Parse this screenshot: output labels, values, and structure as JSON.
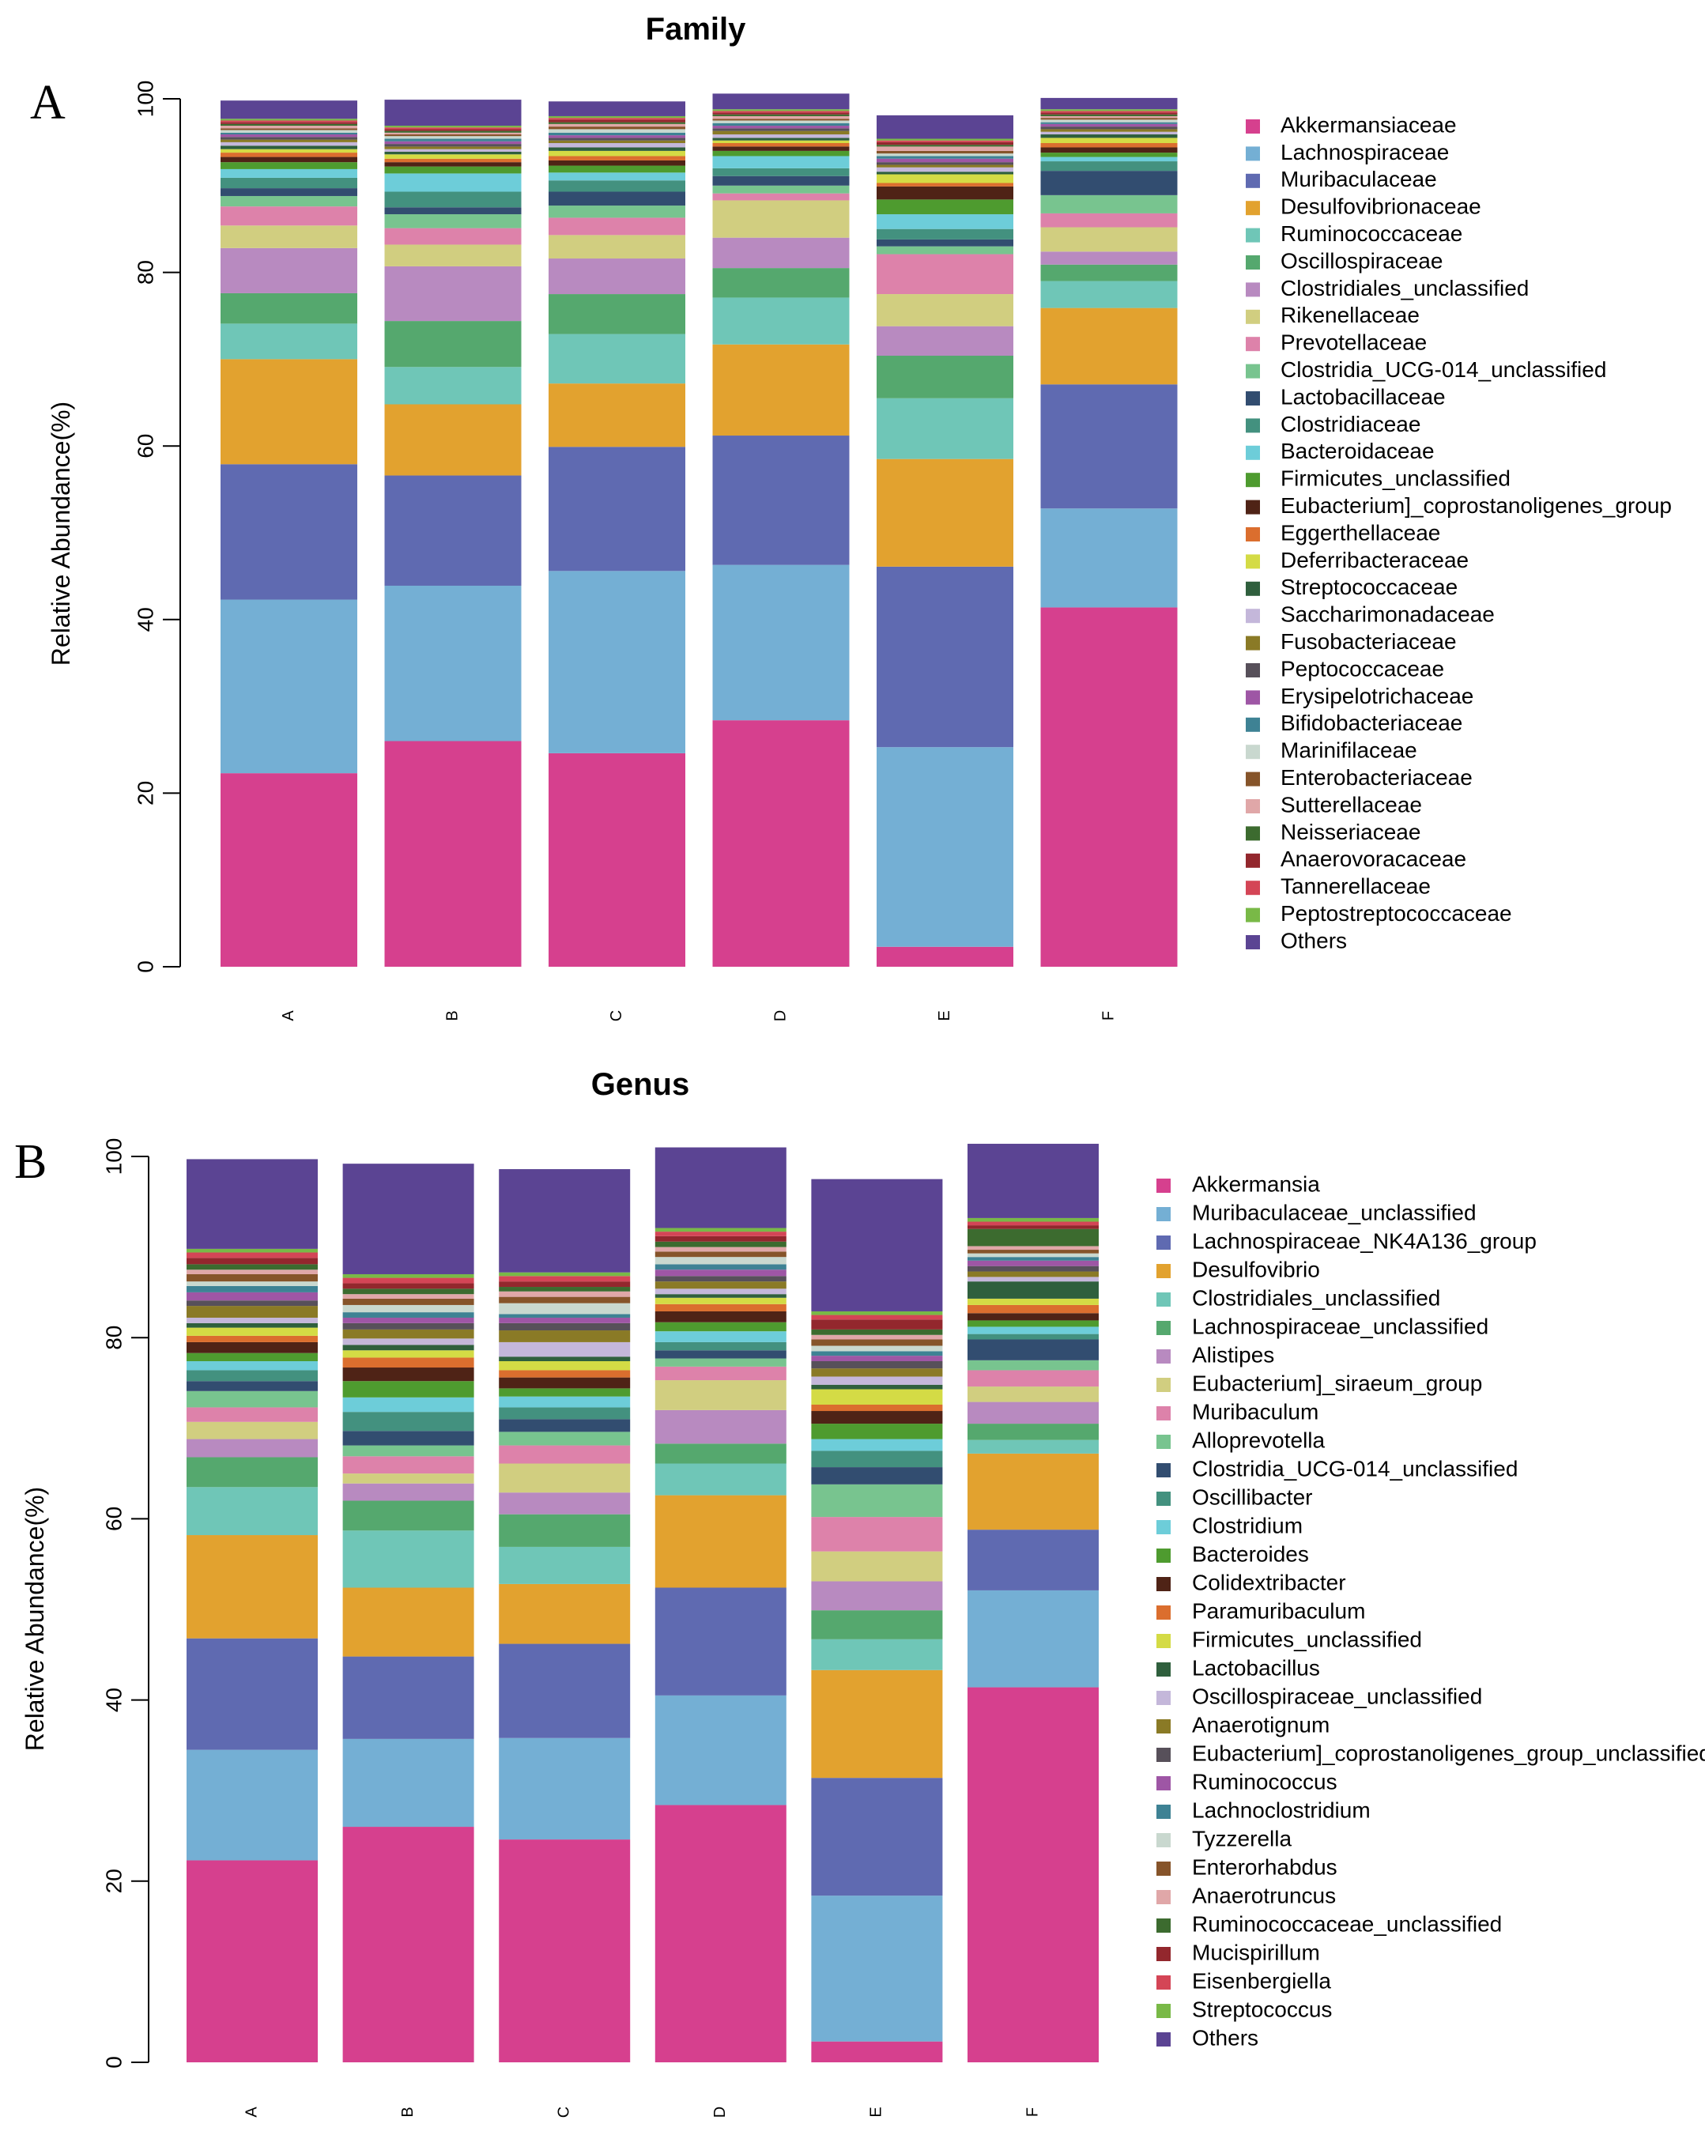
{
  "panels": [
    {
      "letter": "A",
      "chart_data": {
        "type": "stacked-bar",
        "title": "Family",
        "xlabel": "",
        "ylabel": "Relative Abundance(%)",
        "ylim": [
          0,
          100
        ],
        "yticks": [
          "0",
          "20",
          "40",
          "60",
          "80",
          "100"
        ],
        "categories": [
          "A",
          "B",
          "C",
          "D",
          "E",
          "F"
        ],
        "legend_position": "right",
        "series": [
          {
            "name": "Akkermansiaceae",
            "color": "#D6408E",
            "values": [
              22.3,
              26.0,
              24.6,
              28.4,
              2.3,
              41.4
            ]
          },
          {
            "name": "Lachnospiraceae",
            "color": "#74AFD4",
            "values": [
              20.0,
              17.9,
              21.0,
              17.9,
              23.0,
              11.4
            ]
          },
          {
            "name": "Muribaculaceae",
            "color": "#5F6AB1",
            "values": [
              15.6,
              12.7,
              14.3,
              14.9,
              20.8,
              14.3
            ]
          },
          {
            "name": "Desulfovibrionaceae",
            "color": "#E2A22F",
            "values": [
              12.1,
              8.2,
              7.3,
              10.5,
              12.4,
              8.8
            ]
          },
          {
            "name": "Ruminococcaceae",
            "color": "#6FC6B7",
            "values": [
              4.1,
              4.3,
              5.7,
              5.4,
              7.0,
              3.1
            ]
          },
          {
            "name": "Oscillospiraceae",
            "color": "#55A86E",
            "values": [
              3.5,
              5.3,
              4.6,
              3.4,
              4.9,
              1.9
            ]
          },
          {
            "name": "Clostridiales_unclassified",
            "color": "#B88AC0",
            "values": [
              5.2,
              6.3,
              4.1,
              3.5,
              3.4,
              1.5
            ]
          },
          {
            "name": "Rikenellaceae",
            "color": "#D1CE80",
            "values": [
              2.6,
              2.5,
              2.7,
              4.3,
              3.7,
              2.8
            ]
          },
          {
            "name": "Prevotellaceae",
            "color": "#DD82AA",
            "values": [
              2.2,
              1.9,
              2.0,
              0.8,
              4.6,
              1.6
            ]
          },
          {
            "name": "Clostridia_UCG-014_unclassified",
            "color": "#78C48F",
            "values": [
              1.2,
              1.6,
              1.4,
              0.9,
              0.9,
              2.1
            ]
          },
          {
            "name": "Lactobacillaceae",
            "color": "#324D70",
            "values": [
              0.9,
              0.8,
              1.6,
              1.1,
              0.8,
              2.8
            ]
          },
          {
            "name": "Clostridiaceae",
            "color": "#43917F",
            "values": [
              1.2,
              1.8,
              1.3,
              0.9,
              1.2,
              1.1
            ]
          },
          {
            "name": "Bacteroidaceae",
            "color": "#6DCDD9",
            "values": [
              1.0,
              2.1,
              0.9,
              1.4,
              1.7,
              0.5
            ]
          },
          {
            "name": "Firmicutes_unclassified",
            "color": "#4E9B2F",
            "values": [
              0.8,
              0.8,
              0.8,
              0.6,
              1.7,
              0.5
            ]
          },
          {
            "name": "Eubacterium]_coprostanoligenes_group",
            "color": "#4F2316",
            "values": [
              0.6,
              0.5,
              0.6,
              0.5,
              1.5,
              0.6
            ]
          },
          {
            "name": "Eggerthellaceae",
            "color": "#DB6E2E",
            "values": [
              0.5,
              0.4,
              0.5,
              0.4,
              0.4,
              0.5
            ]
          },
          {
            "name": "Deferribacteraceae",
            "color": "#D4DB45",
            "values": [
              0.4,
              0.5,
              0.6,
              0.3,
              1.0,
              0.6
            ]
          },
          {
            "name": "Streptococcaceae",
            "color": "#2F5F3D",
            "values": [
              0.4,
              0.3,
              0.4,
              0.3,
              0.3,
              0.4
            ]
          },
          {
            "name": "Saccharimonadaceae",
            "color": "#C4B7DA",
            "values": [
              0.4,
              0.3,
              0.5,
              0.4,
              0.5,
              0.3
            ]
          },
          {
            "name": "Fusobacteriaceae",
            "color": "#8A7A26",
            "values": [
              0.3,
              0.3,
              0.3,
              0.4,
              0.3,
              0.3
            ]
          },
          {
            "name": "Peptococcaceae",
            "color": "#57505A",
            "values": [
              0.3,
              0.3,
              0.3,
              0.3,
              0.3,
              0.3
            ]
          },
          {
            "name": "Erysipelotrichaceae",
            "color": "#9E56A5",
            "values": [
              0.3,
              0.3,
              0.3,
              0.3,
              0.4,
              0.3
            ]
          },
          {
            "name": "Bifidobacteriaceae",
            "color": "#3E8294",
            "values": [
              0.2,
              0.3,
              0.3,
              0.3,
              0.3,
              0.2
            ]
          },
          {
            "name": "Marinifilaceae",
            "color": "#C9D8CF",
            "values": [
              0.3,
              0.3,
              0.4,
              0.3,
              0.3,
              0.3
            ]
          },
          {
            "name": "Enterobacteriaceae",
            "color": "#86542A",
            "values": [
              0.2,
              0.2,
              0.3,
              0.2,
              0.3,
              0.2
            ]
          },
          {
            "name": "Sutterellaceae",
            "color": "#E0A7A8",
            "values": [
              0.3,
              0.2,
              0.3,
              0.3,
              0.5,
              0.2
            ]
          },
          {
            "name": "Neisseriaceae",
            "color": "#3C6B2F",
            "values": [
              0.2,
              0.2,
              0.2,
              0.2,
              0.2,
              0.2
            ]
          },
          {
            "name": "Anaerovoracaceae",
            "color": "#93272D",
            "values": [
              0.2,
              0.2,
              0.3,
              0.2,
              0.3,
              0.2
            ]
          },
          {
            "name": "Tannerellaceae",
            "color": "#D44556",
            "values": [
              0.2,
              0.2,
              0.2,
              0.2,
              0.2,
              0.2
            ]
          },
          {
            "name": "Peptostreptococcaceae",
            "color": "#79B947",
            "values": [
              0.2,
              0.2,
              0.2,
              0.2,
              0.2,
              0.2
            ]
          },
          {
            "name": "Others",
            "color": "#5B4493",
            "values": [
              2.1,
              3.0,
              1.7,
              1.8,
              2.7,
              1.3
            ]
          }
        ]
      }
    },
    {
      "letter": "B",
      "chart_data": {
        "type": "stacked-bar",
        "title": "Genus",
        "xlabel": "",
        "ylabel": "Relative Abundance(%)",
        "ylim": [
          0,
          100
        ],
        "yticks": [
          "0",
          "20",
          "40",
          "60",
          "80",
          "100"
        ],
        "categories": [
          "A",
          "B",
          "C",
          "D",
          "E",
          "F"
        ],
        "legend_position": "right",
        "series": [
          {
            "name": "Akkermansia",
            "color": "#D6408E",
            "values": [
              22.3,
              26.0,
              24.6,
              28.4,
              2.3,
              41.4
            ]
          },
          {
            "name": "Muribaculaceae_unclassified",
            "color": "#74AFD4",
            "values": [
              12.2,
              9.7,
              11.2,
              12.1,
              16.1,
              10.7
            ]
          },
          {
            "name": "Lachnospiraceae_NK4A136_group",
            "color": "#5F6AB1",
            "values": [
              12.3,
              9.1,
              10.4,
              11.9,
              13.0,
              6.7
            ]
          },
          {
            "name": "Desulfovibrio",
            "color": "#E2A22F",
            "values": [
              11.4,
              7.6,
              6.6,
              10.2,
              11.9,
              8.4
            ]
          },
          {
            "name": "Clostridiales_unclassified",
            "color": "#6FC6B7",
            "values": [
              5.3,
              6.3,
              4.1,
              3.5,
              3.4,
              1.5
            ]
          },
          {
            "name": "Lachnospiraceae_unclassified",
            "color": "#55A86E",
            "values": [
              3.3,
              3.3,
              3.6,
              2.2,
              3.2,
              1.8
            ]
          },
          {
            "name": "Alistipes",
            "color": "#B88AC0",
            "values": [
              2.0,
              1.9,
              2.4,
              3.7,
              3.2,
              2.4
            ]
          },
          {
            "name": "Eubacterium]_siraeum_group",
            "color": "#D1CE80",
            "values": [
              1.9,
              1.1,
              3.2,
              3.3,
              3.3,
              1.7
            ]
          },
          {
            "name": "Muribaculum",
            "color": "#DD82AA",
            "values": [
              1.6,
              1.9,
              2.0,
              1.5,
              3.8,
              1.8
            ]
          },
          {
            "name": "Alloprevotella",
            "color": "#78C48F",
            "values": [
              1.8,
              1.2,
              1.5,
              0.9,
              3.6,
              1.1
            ]
          },
          {
            "name": "Clostridia_UCG-014_unclassified",
            "color": "#324D70",
            "values": [
              1.1,
              1.6,
              1.4,
              0.9,
              1.9,
              2.3
            ]
          },
          {
            "name": "Oscillibacter",
            "color": "#43917F",
            "values": [
              1.2,
              2.1,
              1.3,
              0.9,
              1.8,
              0.6
            ]
          },
          {
            "name": "Clostridium",
            "color": "#6DCDD9",
            "values": [
              1.0,
              1.6,
              1.2,
              1.2,
              1.3,
              0.8
            ]
          },
          {
            "name": "Bacteroides",
            "color": "#4E9B2F",
            "values": [
              0.9,
              1.8,
              0.9,
              1.0,
              1.7,
              0.7
            ]
          },
          {
            "name": "Colidextribacter",
            "color": "#4F2316",
            "values": [
              1.2,
              1.5,
              1.2,
              1.2,
              1.4,
              0.8
            ]
          },
          {
            "name": "Paramuribaculum",
            "color": "#DB6E2E",
            "values": [
              0.7,
              1.1,
              0.8,
              0.8,
              0.7,
              0.9
            ]
          },
          {
            "name": "Firmicutes_unclassified",
            "color": "#D4DB45",
            "values": [
              0.9,
              0.8,
              1.0,
              0.7,
              1.7,
              0.7
            ]
          },
          {
            "name": "Lactobacillus",
            "color": "#2F5F3D",
            "values": [
              0.5,
              0.6,
              0.5,
              0.4,
              0.5,
              1.9
            ]
          },
          {
            "name": "Oscillospiraceae_unclassified",
            "color": "#C4B7DA",
            "values": [
              0.6,
              0.7,
              1.6,
              0.6,
              0.9,
              0.5
            ]
          },
          {
            "name": "Anaerotignum",
            "color": "#8A7A26",
            "values": [
              1.3,
              1.0,
              1.3,
              0.8,
              0.9,
              0.6
            ]
          },
          {
            "name": "Eubacterium]_coprostanoligenes_group_unclassified",
            "color": "#57505A",
            "values": [
              0.6,
              0.7,
              0.8,
              0.6,
              0.8,
              0.6
            ]
          },
          {
            "name": "Ruminococcus",
            "color": "#9E56A5",
            "values": [
              0.9,
              0.6,
              0.6,
              0.7,
              0.6,
              0.6
            ]
          },
          {
            "name": "Lachnoclostridium",
            "color": "#3E8294",
            "values": [
              0.7,
              0.6,
              0.4,
              0.6,
              0.5,
              0.4
            ]
          },
          {
            "name": "Tyzzerella",
            "color": "#C9D8CF",
            "values": [
              0.5,
              0.8,
              1.2,
              0.8,
              0.6,
              0.4
            ]
          },
          {
            "name": "Enterorhabdus",
            "color": "#86542A",
            "values": [
              0.8,
              0.7,
              0.7,
              0.6,
              0.7,
              0.4
            ]
          },
          {
            "name": "Anaerotruncus",
            "color": "#E0A7A8",
            "values": [
              0.5,
              0.5,
              0.6,
              0.5,
              0.5,
              0.4
            ]
          },
          {
            "name": "Ruminococcaceae_unclassified",
            "color": "#3C6B2F",
            "values": [
              0.6,
              0.6,
              0.5,
              0.6,
              0.6,
              1.9
            ]
          },
          {
            "name": "Mucispirillum",
            "color": "#93272D",
            "values": [
              0.7,
              0.6,
              0.6,
              0.6,
              1.1,
              0.4
            ]
          },
          {
            "name": "Eisenbergiella",
            "color": "#D44556",
            "values": [
              0.6,
              0.6,
              0.6,
              0.5,
              0.5,
              0.4
            ]
          },
          {
            "name": "Streptococcus",
            "color": "#79B947",
            "values": [
              0.4,
              0.4,
              0.4,
              0.4,
              0.4,
              0.4
            ]
          },
          {
            "name": "Others",
            "color": "#5B4493",
            "values": [
              9.9,
              12.2,
              11.4,
              8.9,
              14.6,
              8.2
            ]
          }
        ]
      }
    }
  ]
}
